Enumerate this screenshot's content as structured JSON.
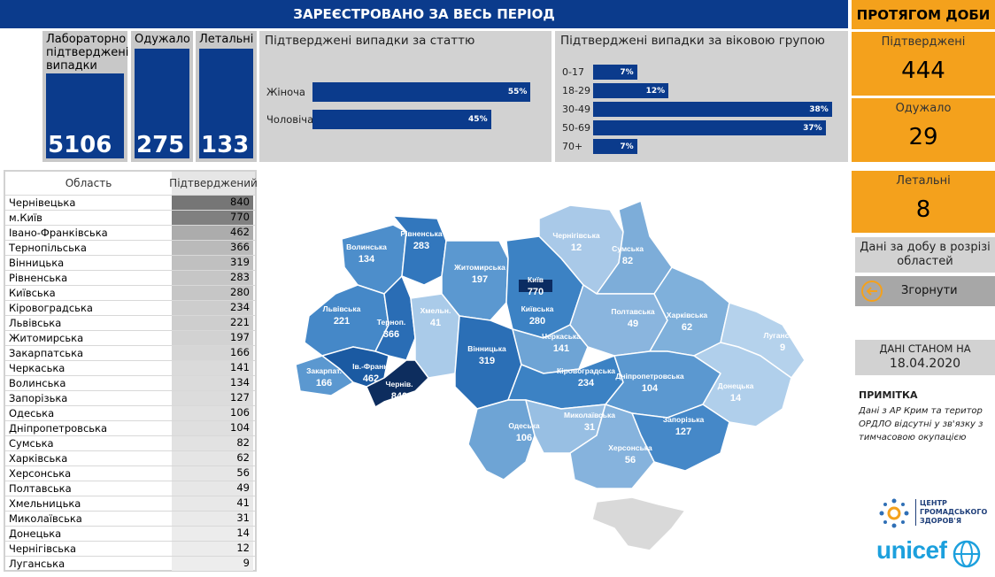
{
  "header": {
    "main_title": "ЗАРЕЄСТРОВАНО ЗА ВЕСЬ ПЕРІОД",
    "right_title": "ПРОТЯГОМ ДОБИ"
  },
  "kpis": [
    {
      "label": "Лабораторно підтверджені випадки",
      "value": "5106"
    },
    {
      "label": "Одужало",
      "value": "275"
    },
    {
      "label": "Летальні",
      "value": "133"
    }
  ],
  "sex_panel": {
    "title": "Підтверджені випадки за статтю",
    "rows": [
      {
        "label": "Жіноча",
        "pct": 55,
        "text": "55%"
      },
      {
        "label": "Чоловіча",
        "pct": 45,
        "text": "45%"
      }
    ]
  },
  "age_panel": {
    "title": "Підтверджені випадки за віковою групою",
    "rows": [
      {
        "label": "0-17",
        "pct": 7,
        "text": "7%"
      },
      {
        "label": "18-29",
        "pct": 12,
        "text": "12%"
      },
      {
        "label": "30-49",
        "pct": 38,
        "text": "38%"
      },
      {
        "label": "50-69",
        "pct": 37,
        "text": "37%"
      },
      {
        "label": "70+",
        "pct": 7,
        "text": "7%"
      }
    ]
  },
  "table": {
    "col_region": "Область",
    "col_confirmed": "Підтверджений",
    "rows": [
      {
        "region": "Чернівецька",
        "value": "840"
      },
      {
        "region": "м.Київ",
        "value": "770"
      },
      {
        "region": "Івано-Франківська",
        "value": "462"
      },
      {
        "region": "Тернопільська",
        "value": "366"
      },
      {
        "region": "Вінницька",
        "value": "319"
      },
      {
        "region": "Рівненська",
        "value": "283"
      },
      {
        "region": "Київська",
        "value": "280"
      },
      {
        "region": "Кіровоградська",
        "value": "234"
      },
      {
        "region": "Львівська",
        "value": "221"
      },
      {
        "region": "Житомирська",
        "value": "197"
      },
      {
        "region": "Закарпатська",
        "value": "166"
      },
      {
        "region": "Черкаська",
        "value": "141"
      },
      {
        "region": "Волинська",
        "value": "134"
      },
      {
        "region": "Запорізька",
        "value": "127"
      },
      {
        "region": "Одеська",
        "value": "106"
      },
      {
        "region": "Дніпропетровська",
        "value": "104"
      },
      {
        "region": "Сумська",
        "value": "82"
      },
      {
        "region": "Харківська",
        "value": "62"
      },
      {
        "region": "Херсонська",
        "value": "56"
      },
      {
        "region": "Полтавська",
        "value": "49"
      },
      {
        "region": "Хмельницька",
        "value": "41"
      },
      {
        "region": "Миколаївська",
        "value": "31"
      },
      {
        "region": "Донецька",
        "value": "14"
      },
      {
        "region": "Чернігівська",
        "value": "12"
      },
      {
        "region": "Луганська",
        "value": "9"
      }
    ]
  },
  "map_labels": [
    {
      "name": "Волинська",
      "value": "134"
    },
    {
      "name": "Рівненська",
      "value": "283"
    },
    {
      "name": "Житомирська",
      "value": "197"
    },
    {
      "name": "Київ",
      "value": "770"
    },
    {
      "name": "Київська",
      "value": "280"
    },
    {
      "name": "Чернігівська",
      "value": "12"
    },
    {
      "name": "Сумська",
      "value": "82"
    },
    {
      "name": "Львівська",
      "value": "221"
    },
    {
      "name": "Терноп.",
      "value": "366"
    },
    {
      "name": "Хмельн.",
      "value": "41"
    },
    {
      "name": "Вінницька",
      "value": "319"
    },
    {
      "name": "Черкаська",
      "value": "141"
    },
    {
      "name": "Полтавська",
      "value": "49"
    },
    {
      "name": "Харківська",
      "value": "62"
    },
    {
      "name": "Луганська",
      "value": "9"
    },
    {
      "name": "Закарпат.",
      "value": "166"
    },
    {
      "name": "Ів.-Франк.",
      "value": "462"
    },
    {
      "name": "Чернів.",
      "value": "840"
    },
    {
      "name": "Кіровоградська",
      "value": "234"
    },
    {
      "name": "Дніпропетровська",
      "value": "104"
    },
    {
      "name": "Донецька",
      "value": "14"
    },
    {
      "name": "Одеська",
      "value": "106"
    },
    {
      "name": "Миколаївська",
      "value": "31"
    },
    {
      "name": "Запорізька",
      "value": "127"
    },
    {
      "name": "Херсонська",
      "value": "56"
    }
  ],
  "daily": [
    {
      "label": "Підтверджені",
      "value": "444"
    },
    {
      "label": "Одужало",
      "value": "29"
    },
    {
      "label": "Летальні",
      "value": "8"
    }
  ],
  "regional_link": "Дані за добу в розрізі областей",
  "collapse_button": "Згорнути",
  "data_as_of_label": "ДАНІ СТАНОМ НА",
  "data_as_of_date": "18.04.2020",
  "note_title": "ПРИМІТКА",
  "note_body": "Дані з АР Крим та територ ОРДЛО відсутні у зв'язку з тимчасовою окупацією",
  "logo_phc_text": "ЦЕНТР ГРОМАДСЬКОГО ЗДОРОВ'Я",
  "logo_unicef_text": "unicef",
  "colors": {
    "header_blue": "#0b3b8c",
    "daily_orange": "#f4a11c",
    "panel_gray": "#d2d2d2"
  }
}
